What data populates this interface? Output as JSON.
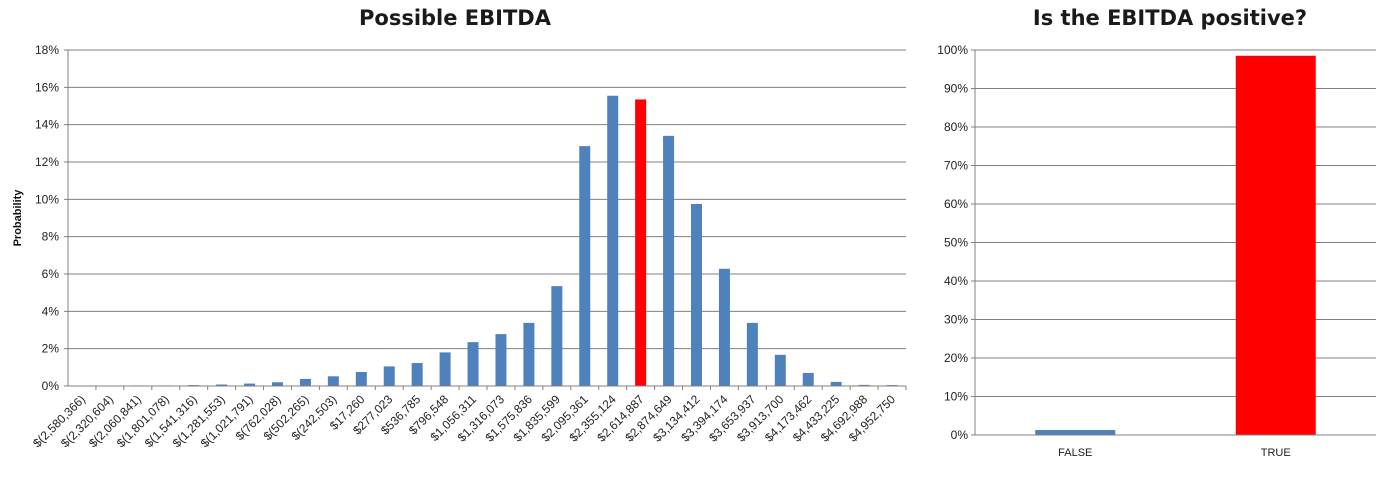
{
  "chart_data": [
    {
      "type": "bar",
      "title": "Possible EBITDA",
      "xlabel": "",
      "ylabel": "Probability",
      "ylim": [
        0,
        18
      ],
      "yticks": [
        "0%",
        "2%",
        "4%",
        "6%",
        "8%",
        "10%",
        "12%",
        "14%",
        "16%",
        "18%"
      ],
      "grid": true,
      "categories": [
        "$(2,580,366)",
        "$(2,320,604)",
        "$(2,060,841)",
        "$(1,801,078)",
        "$(1,541,316)",
        "$(1,281,553)",
        "$(1,021,791)",
        "$(762,028)",
        "$(502,265)",
        "$(242,503)",
        "$17,260",
        "$277,023",
        "$536,785",
        "$796,548",
        "$1,056,311",
        "$1,316,073",
        "$1,575,836",
        "$1,835,599",
        "$2,095,361",
        "$2,355,124",
        "$2,614,887",
        "$2,874,649",
        "$3,134,412",
        "$3,394,174",
        "$3,653,937",
        "$3,913,700",
        "$4,173,462",
        "$4,433,225",
        "$4,692,988",
        "$4,952,750"
      ],
      "values": [
        0.02,
        0.02,
        0.03,
        0.03,
        0.05,
        0.08,
        0.13,
        0.2,
        0.38,
        0.52,
        0.75,
        1.05,
        1.23,
        1.8,
        2.35,
        2.78,
        3.38,
        5.35,
        12.85,
        15.55,
        15.35,
        13.4,
        9.75,
        6.28,
        3.38,
        1.67,
        0.7,
        0.22,
        0.06,
        0.05
      ],
      "highlight_index": 20,
      "colors": {
        "bar": "#4F81BD",
        "highlight": "#FF0000",
        "grid": "#808080"
      }
    },
    {
      "type": "bar",
      "title": "Is the EBITDA positive?",
      "xlabel": "",
      "ylabel": "",
      "ylim": [
        0,
        100
      ],
      "yticks": [
        "0%",
        "10%",
        "20%",
        "30%",
        "40%",
        "50%",
        "60%",
        "70%",
        "80%",
        "90%",
        "100%"
      ],
      "grid": true,
      "categories": [
        "FALSE",
        "TRUE"
      ],
      "values": [
        1.3,
        98.5
      ],
      "colors": {
        "bars": [
          "#4F81BD",
          "#FF0000"
        ],
        "grid": "#808080"
      }
    }
  ]
}
